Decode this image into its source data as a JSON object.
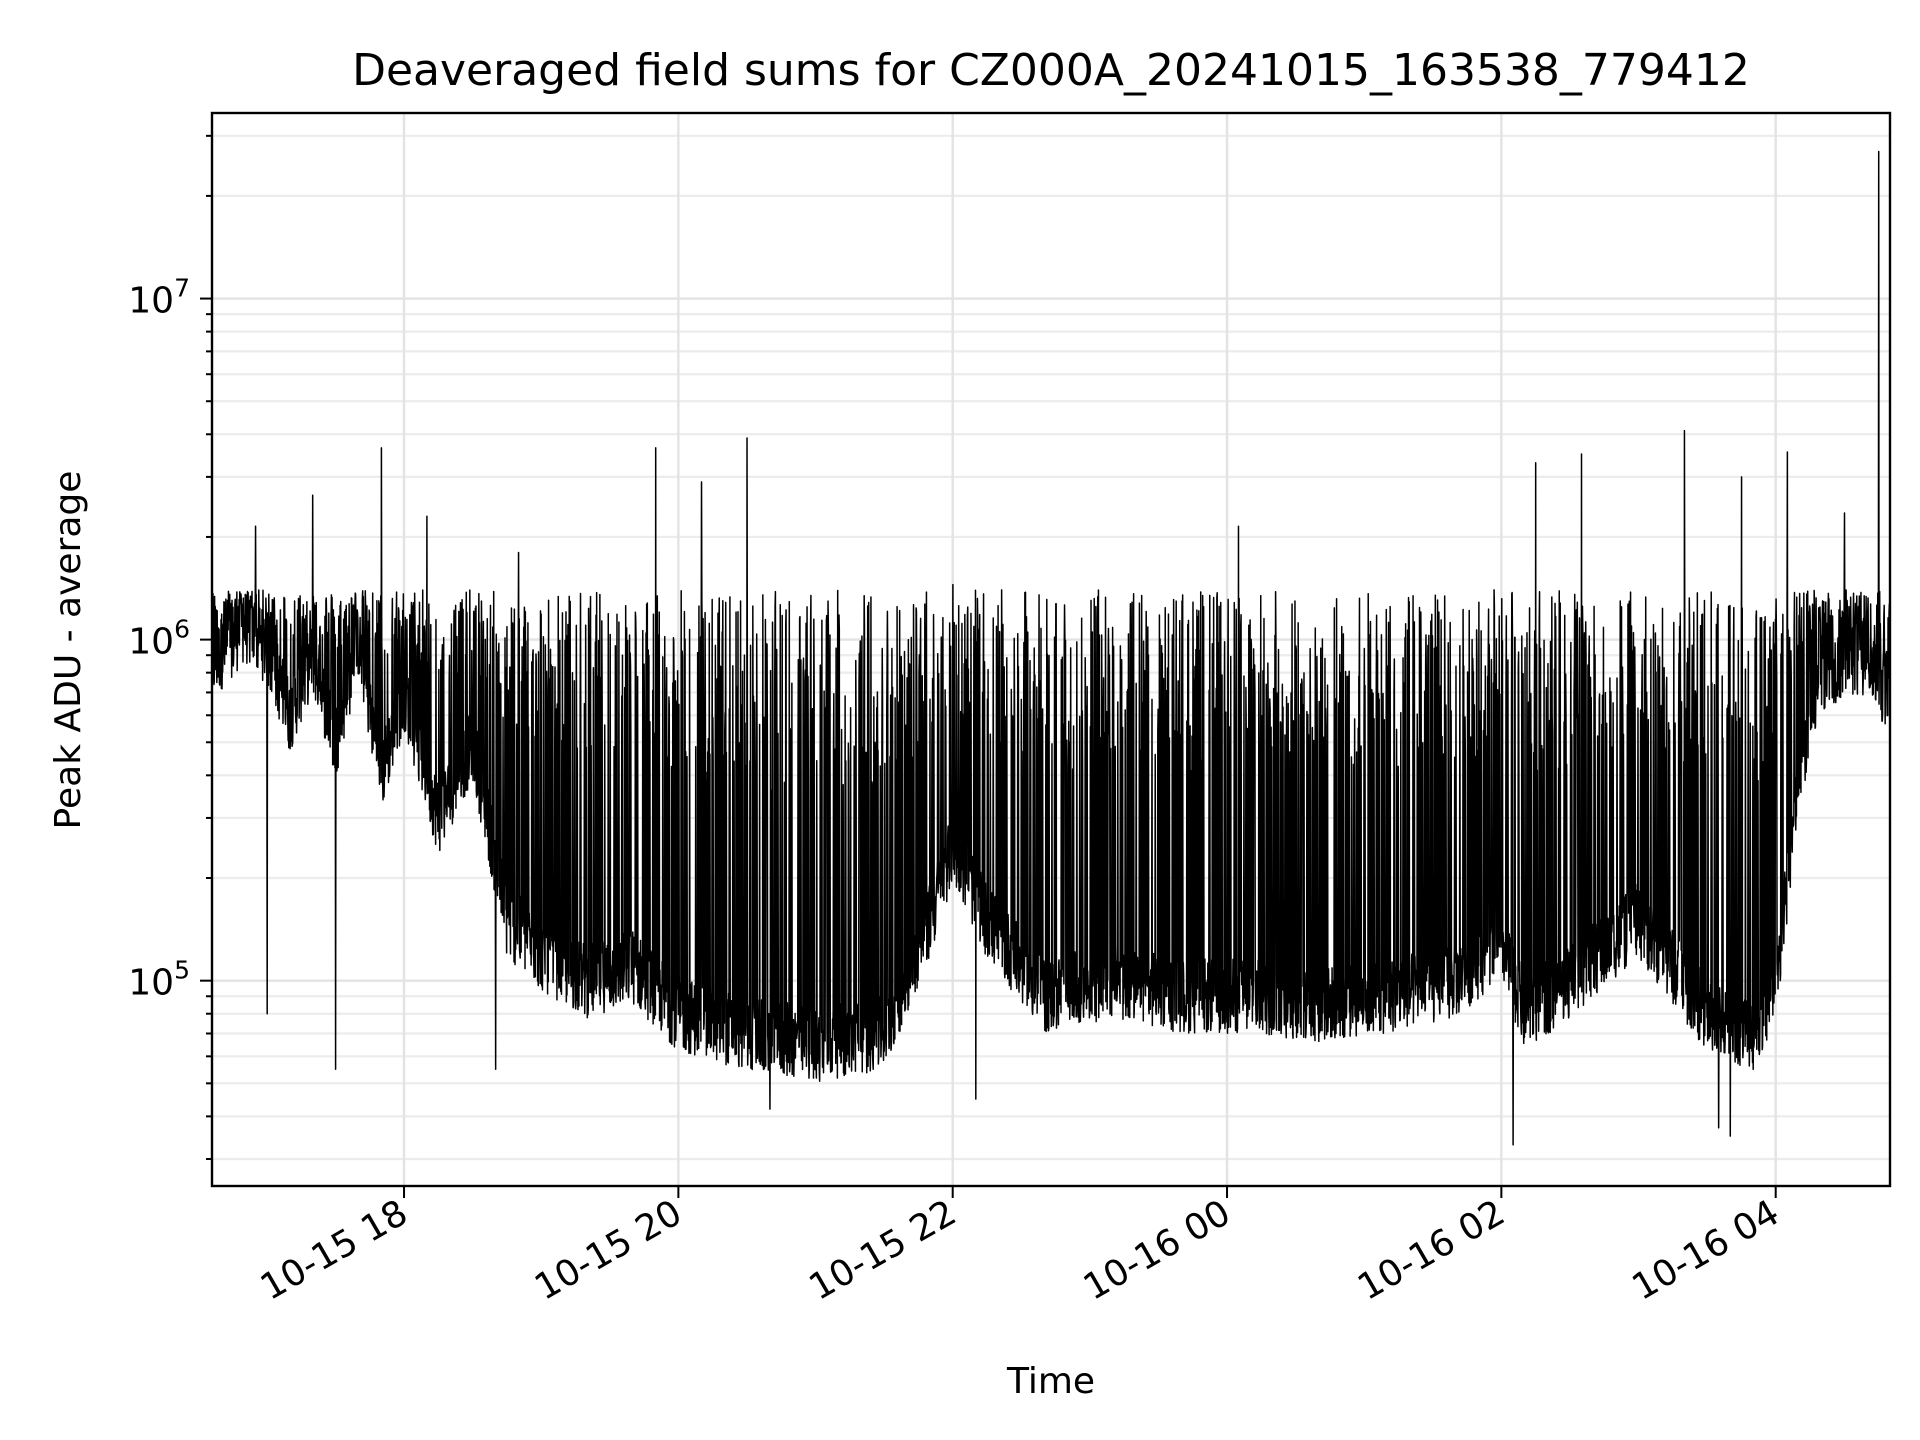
{
  "chart_data": {
    "type": "line",
    "title": "Deaveraged field sums for CZ000A_20241015_163538_779412",
    "xlabel": "Time",
    "ylabel": "Peak ADU - average",
    "yscale": "log",
    "xlim": [
      "2024-10-15T16:36",
      "2024-10-16T04:50"
    ],
    "ylim": [
      25000,
      35000000
    ],
    "grid": "both",
    "x_ticks": [
      {
        "value": "2024-10-15T18:00",
        "label": "10-15 18"
      },
      {
        "value": "2024-10-15T20:00",
        "label": "10-15 20"
      },
      {
        "value": "2024-10-15T22:00",
        "label": "10-15 22"
      },
      {
        "value": "2024-10-16T00:00",
        "label": "10-16 00"
      },
      {
        "value": "2024-10-16T02:00",
        "label": "10-16 02"
      },
      {
        "value": "2024-10-16T04:00",
        "label": "10-16 04"
      }
    ],
    "y_ticks": [
      {
        "value": 100000,
        "base": "10",
        "exp": "5"
      },
      {
        "value": 1000000,
        "base": "10",
        "exp": "6"
      },
      {
        "value": 10000000,
        "base": "10",
        "exp": "7"
      }
    ],
    "series": [
      {
        "color": "#000000",
        "points": [
          [
            "2024-10-15T16:36",
            850000
          ],
          [
            "2024-10-15T16:50",
            1100000
          ],
          [
            "2024-10-15T17:00",
            950000
          ],
          [
            "2024-10-15T17:10",
            600000
          ],
          [
            "2024-10-15T17:20",
            900000
          ],
          [
            "2024-10-15T17:30",
            500000
          ],
          [
            "2024-10-15T17:40",
            1000000
          ],
          [
            "2024-10-15T17:50",
            400000
          ],
          [
            "2024-10-15T18:00",
            700000
          ],
          [
            "2024-10-15T18:15",
            300000
          ],
          [
            "2024-10-15T18:30",
            500000
          ],
          [
            "2024-10-15T18:45",
            150000
          ],
          [
            "2024-10-15T19:00",
            120000
          ],
          [
            "2024-10-15T19:20",
            100000
          ],
          [
            "2024-10-15T19:40",
            110000
          ],
          [
            "2024-10-15T20:00",
            80000
          ],
          [
            "2024-10-15T20:30",
            70000
          ],
          [
            "2024-10-15T21:00",
            65000
          ],
          [
            "2024-10-15T21:30",
            70000
          ],
          [
            "2024-10-15T21:50",
            150000
          ],
          [
            "2024-10-15T22:00",
            250000
          ],
          [
            "2024-10-15T22:15",
            150000
          ],
          [
            "2024-10-15T22:40",
            90000
          ],
          [
            "2024-10-15T23:10",
            100000
          ],
          [
            "2024-10-15T23:40",
            90000
          ],
          [
            "2024-10-16T00:10",
            90000
          ],
          [
            "2024-10-16T00:40",
            85000
          ],
          [
            "2024-10-16T01:10",
            90000
          ],
          [
            "2024-10-16T01:40",
            100000
          ],
          [
            "2024-10-16T02:00",
            130000
          ],
          [
            "2024-10-16T02:10",
            80000
          ],
          [
            "2024-10-16T02:30",
            100000
          ],
          [
            "2024-10-16T03:00",
            150000
          ],
          [
            "2024-10-16T03:30",
            80000
          ],
          [
            "2024-10-16T03:50",
            70000
          ],
          [
            "2024-10-16T04:00",
            90000
          ],
          [
            "2024-10-16T04:10",
            400000
          ],
          [
            "2024-10-16T04:20",
            800000
          ],
          [
            "2024-10-16T04:35",
            900000
          ],
          [
            "2024-10-16T04:50",
            700000
          ]
        ],
        "spikes": [
          [
            "2024-10-15T16:55",
            2150000
          ],
          [
            "2024-10-15T17:20",
            2650000
          ],
          [
            "2024-10-15T17:50",
            3650000
          ],
          [
            "2024-10-15T18:10",
            2300000
          ],
          [
            "2024-10-15T18:50",
            1800000
          ],
          [
            "2024-10-15T19:50",
            3650000
          ],
          [
            "2024-10-15T20:10",
            2900000
          ],
          [
            "2024-10-15T20:30",
            3900000
          ],
          [
            "2024-10-15T22:00",
            1450000
          ],
          [
            "2024-10-16T00:05",
            2150000
          ],
          [
            "2024-10-16T02:15",
            3300000
          ],
          [
            "2024-10-16T02:35",
            3500000
          ],
          [
            "2024-10-16T03:20",
            4100000
          ],
          [
            "2024-10-16T03:45",
            3000000
          ],
          [
            "2024-10-16T04:05",
            3550000
          ],
          [
            "2024-10-16T04:30",
            2350000
          ],
          [
            "2024-10-16T04:45",
            27000000
          ]
        ],
        "dips": [
          [
            "2024-10-15T17:00",
            80000
          ],
          [
            "2024-10-15T17:30",
            55000
          ],
          [
            "2024-10-15T18:40",
            55000
          ],
          [
            "2024-10-15T20:40",
            42000
          ],
          [
            "2024-10-15T22:10",
            45000
          ],
          [
            "2024-10-16T02:05",
            33000
          ],
          [
            "2024-10-16T03:35",
            37000
          ],
          [
            "2024-10-16T03:40",
            35000
          ]
        ]
      }
    ]
  }
}
